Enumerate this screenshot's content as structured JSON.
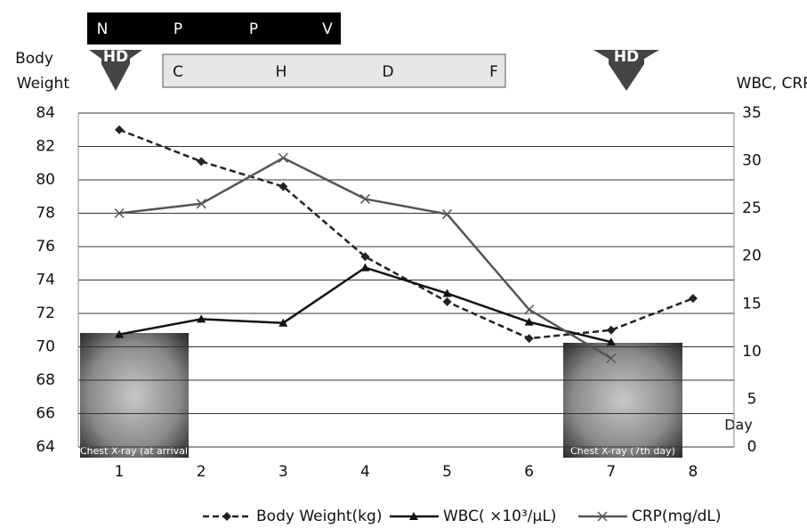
{
  "chart_data": {
    "type": "line",
    "categories": [
      "1",
      "2",
      "3",
      "4",
      "5",
      "6",
      "7",
      "8"
    ],
    "x_label": "Day",
    "y_label": [
      "Body",
      "Weight"
    ],
    "y2_label": "WBC, CRP",
    "ylim": [
      64,
      84
    ],
    "yticks": [
      64,
      66,
      68,
      70,
      72,
      74,
      76,
      78,
      80,
      82,
      84
    ],
    "y2lim": [
      0,
      35
    ],
    "y2ticks": [
      0,
      5,
      10,
      15,
      20,
      25,
      30,
      35
    ],
    "grid": true,
    "series": [
      {
        "name": "Body Weight(kg)",
        "color": "#222222",
        "dashed": true,
        "marker": "diamond",
        "values": [
          83.0,
          81.1,
          79.6,
          75.4,
          72.7,
          70.5,
          71.0,
          72.9
        ]
      },
      {
        "name": "WBC( ×10³/μL)",
        "color": "#111111",
        "dashed": false,
        "marker": "triangle",
        "axis": "y2",
        "values": [
          11.8,
          13.4,
          13.0,
          18.8,
          16.1,
          13.1,
          11.0,
          null
        ]
      },
      {
        "name": "CRP(mg/dL)",
        "color": "#555555",
        "dashed": false,
        "marker": "x",
        "axis": "y2",
        "values": [
          24.5,
          25.5,
          30.3,
          26.0,
          24.4,
          14.4,
          9.3,
          null
        ]
      }
    ],
    "annotations": {
      "ventilation": [
        "N",
        "P",
        "P",
        "V"
      ],
      "chdf": [
        "C",
        "H",
        "D",
        "F"
      ],
      "hd": [
        "HD",
        "HD"
      ],
      "xray_captions": [
        "Chest X-ray (at arrival)",
        "Chest X-ray (7th day)"
      ]
    }
  }
}
